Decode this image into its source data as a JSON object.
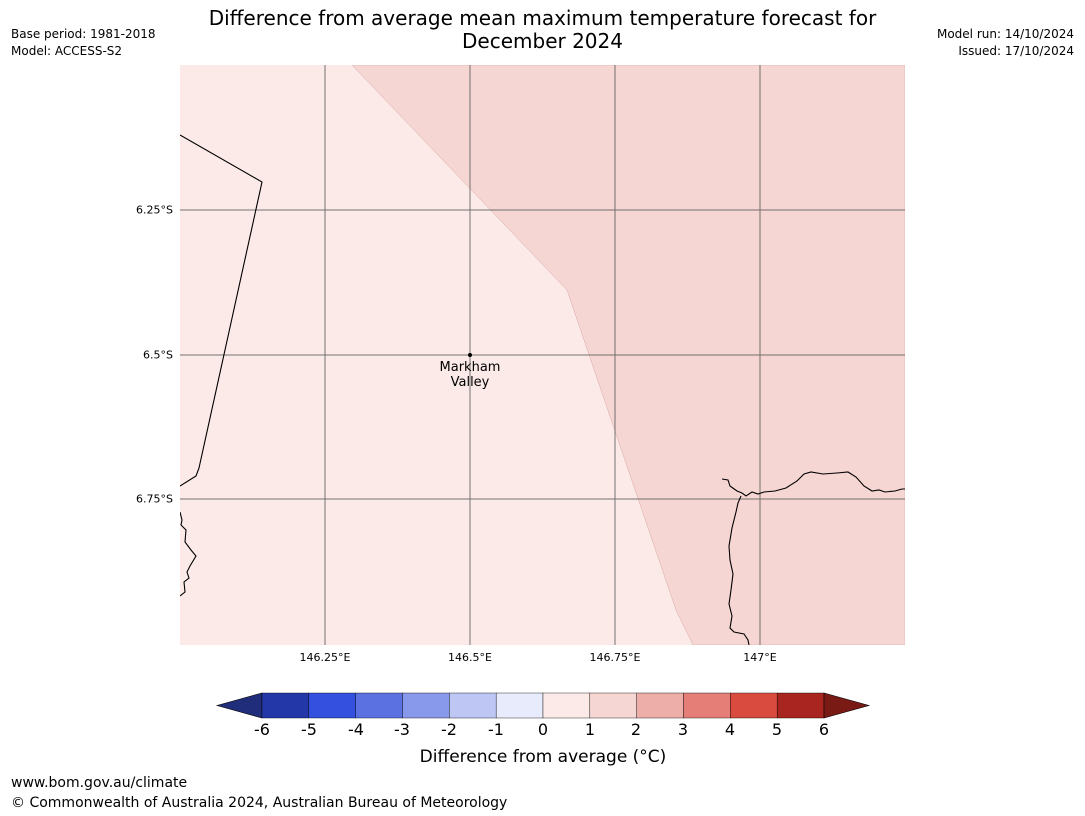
{
  "header": {
    "base_period": "Base period: 1981-2018",
    "model": "Model: ACCESS-S2",
    "model_run": "Model run: 14/10/2024",
    "issued": "Issued: 17/10/2024",
    "title_line1": "Difference from average mean maximum temperature forecast for",
    "title_line2": "December 2024"
  },
  "map": {
    "lat_labels": [
      "6.25°S",
      "6.5°S",
      "6.75°S"
    ],
    "lon_labels": [
      "146.25°E",
      "146.5°E",
      "146.75°E",
      "147°E"
    ],
    "place": {
      "line1": "Markham",
      "line2": "Valley"
    },
    "region_colors": {
      "zero_to_one": "#fbeae8",
      "one_to_two": "#f5d6d3"
    }
  },
  "colorbar": {
    "title": "Difference from average (°C)",
    "labels": [
      "-6",
      "-5",
      "-4",
      "-3",
      "-2",
      "-1",
      "0",
      "1",
      "2",
      "3",
      "4",
      "5",
      "6"
    ],
    "under_color": "#1f2d7a",
    "over_color": "#7a1a14",
    "colors": [
      "#2437a8",
      "#3350de",
      "#5b71e2",
      "#8898ea",
      "#bec6f4",
      "#e8ebfc",
      "#fbeae8",
      "#f5d6d3",
      "#edaea9",
      "#e47e77",
      "#d94a3f",
      "#a8261f"
    ]
  },
  "footer": {
    "url": "www.bom.gov.au/climate",
    "copyright": "© Commonwealth of Australia 2024, Australian Bureau of Meteorology"
  }
}
